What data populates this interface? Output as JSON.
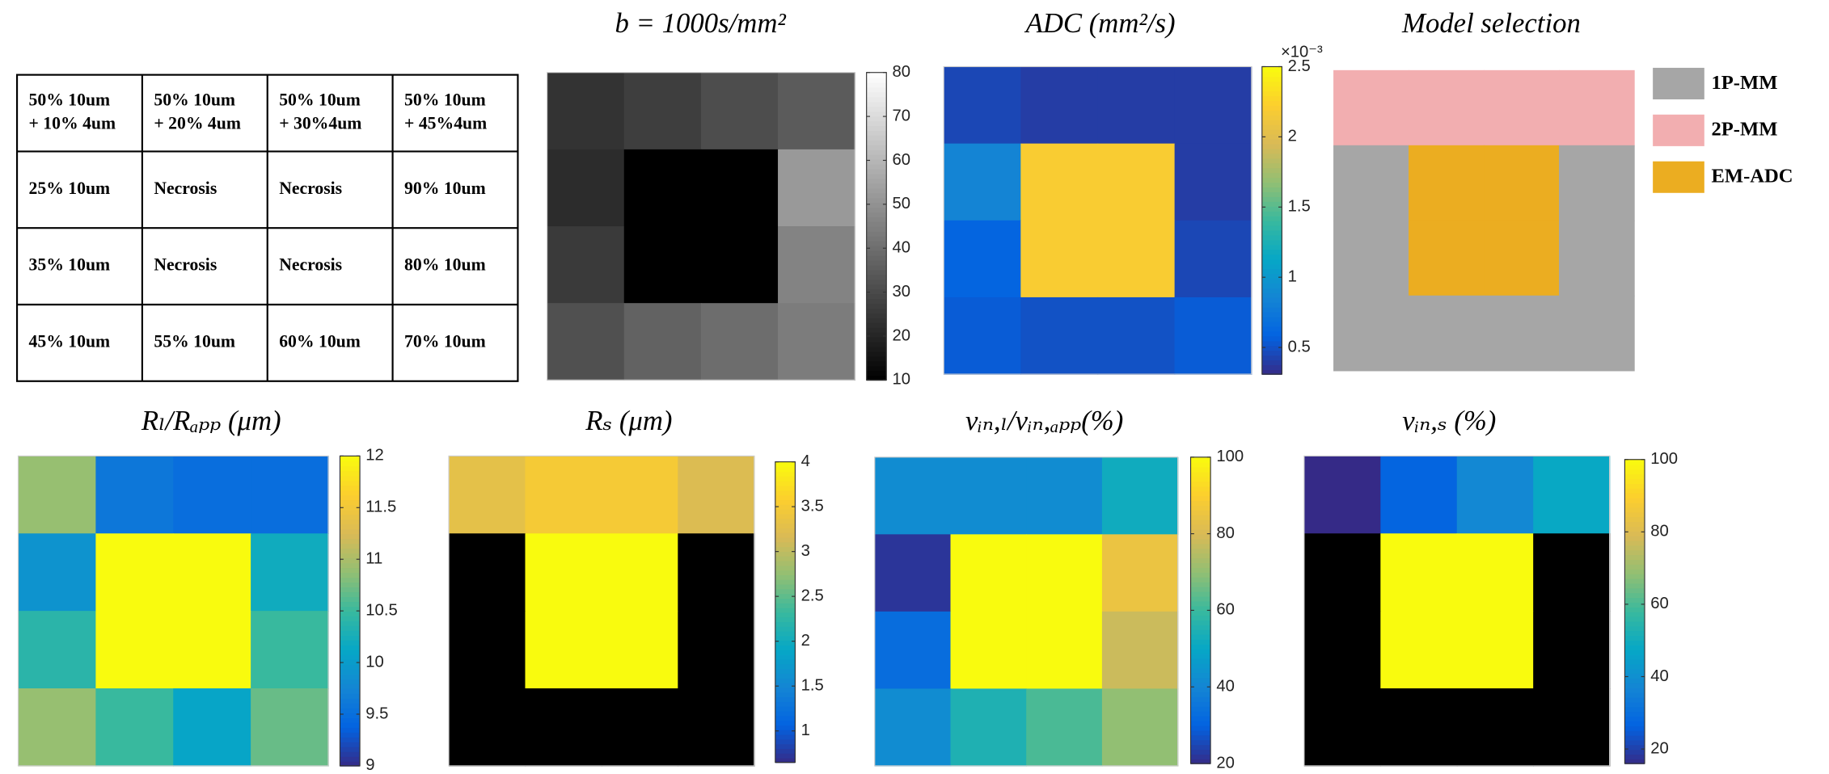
{
  "table": {
    "rows": [
      [
        [
          "50% 10um",
          "+ 10% 4um"
        ],
        [
          "50% 10um",
          "+ 20% 4um"
        ],
        [
          "50% 10um",
          "+ 30%4um"
        ],
        [
          "50% 10um",
          "+ 45%4um"
        ]
      ],
      [
        [
          "25% 10um"
        ],
        [
          "Necrosis"
        ],
        [
          "Necrosis"
        ],
        [
          "90% 10um"
        ]
      ],
      [
        [
          "35% 10um"
        ],
        [
          "Necrosis"
        ],
        [
          "Necrosis"
        ],
        [
          "80% 10um"
        ]
      ],
      [
        [
          "45% 10um"
        ],
        [
          "55% 10um"
        ],
        [
          "60% 10um"
        ],
        [
          "70% 10um"
        ]
      ]
    ]
  },
  "chart_data": [
    {
      "type": "heatmap",
      "title": "b = 1000s/mm²",
      "colormap": "gray",
      "values": [
        [
          24,
          27,
          31,
          35
        ],
        [
          22,
          10,
          10,
          52
        ],
        [
          26,
          10,
          10,
          46
        ],
        [
          32,
          37,
          40,
          44
        ]
      ],
      "clim": [
        10,
        80
      ],
      "cticks": [
        10,
        20,
        30,
        40,
        50,
        60,
        70,
        80
      ]
    },
    {
      "type": "heatmap",
      "title": "ADC (mm²/s)",
      "colormap": "parula",
      "exponent_label": "×10⁻³",
      "values": [
        [
          0.45,
          0.4,
          0.4,
          0.4
        ],
        [
          0.85,
          2.2,
          2.2,
          0.4
        ],
        [
          0.6,
          2.2,
          2.2,
          0.45
        ],
        [
          0.55,
          0.5,
          0.5,
          0.55
        ]
      ],
      "clim": [
        0.31,
        2.5
      ],
      "cticks": [
        0.5,
        1,
        1.5,
        2,
        2.5
      ]
    },
    {
      "type": "categorical_map",
      "title": "Model selection",
      "series": [
        {
          "name": "1P-MM",
          "color": "#a6a6a6"
        },
        {
          "name": "2P-MM",
          "color": "#f2aeb0"
        },
        {
          "name": "EM-ADC",
          "color": "#ebad21"
        }
      ],
      "values": [
        [
          "2P-MM",
          "2P-MM",
          "2P-MM",
          "2P-MM"
        ],
        [
          "1P-MM",
          "EM-ADC",
          "EM-ADC",
          "1P-MM"
        ],
        [
          "1P-MM",
          "EM-ADC",
          "EM-ADC",
          "1P-MM"
        ],
        [
          "1P-MM",
          "1P-MM",
          "1P-MM",
          "1P-MM"
        ]
      ]
    },
    {
      "type": "heatmap",
      "title": "Rₗ/Rₐₚₚ (μm)",
      "colormap": "parula",
      "values": [
        [
          10.9,
          9.6,
          9.5,
          9.5
        ],
        [
          9.9,
          12,
          12,
          10.2
        ],
        [
          10.4,
          12,
          12,
          10.5
        ],
        [
          10.9,
          10.5,
          10.1,
          10.7
        ]
      ],
      "clim": [
        9,
        12
      ],
      "cticks": [
        9,
        9.5,
        10,
        10.5,
        11,
        11.5,
        12
      ]
    },
    {
      "type": "heatmap",
      "title": "Rₛ (μm)",
      "colormap": "parula",
      "nan_color": "#000000",
      "values": [
        [
          3.3,
          3.5,
          3.5,
          3.2
        ],
        [
          null,
          4,
          4,
          null
        ],
        [
          null,
          4,
          4,
          null
        ],
        [
          null,
          null,
          null,
          null
        ]
      ],
      "clim": [
        0.65,
        4
      ],
      "cticks": [
        1,
        1.5,
        2,
        2.5,
        3,
        3.5,
        4
      ]
    },
    {
      "type": "heatmap",
      "title": "vᵢₙ,ₗ/vᵢₙ,ₐₚₚ(%)",
      "colormap": "parula",
      "values": [
        [
          42,
          42,
          42,
          52
        ],
        [
          22,
          100,
          100,
          85
        ],
        [
          33,
          100,
          100,
          78
        ],
        [
          42,
          55,
          62,
          70
        ]
      ],
      "clim": [
        20,
        100
      ],
      "cticks": [
        20,
        40,
        60,
        80,
        100
      ]
    },
    {
      "type": "heatmap",
      "title": "vᵢₙ,ₛ (%)",
      "colormap": "parula",
      "nan_color": "#000000",
      "values": [
        [
          16,
          27,
          38,
          48
        ],
        [
          null,
          100,
          100,
          null
        ],
        [
          null,
          100,
          100,
          null
        ],
        [
          null,
          null,
          null,
          null
        ]
      ],
      "clim": [
        16,
        100
      ],
      "cticks": [
        20,
        40,
        60,
        80,
        100
      ]
    }
  ]
}
